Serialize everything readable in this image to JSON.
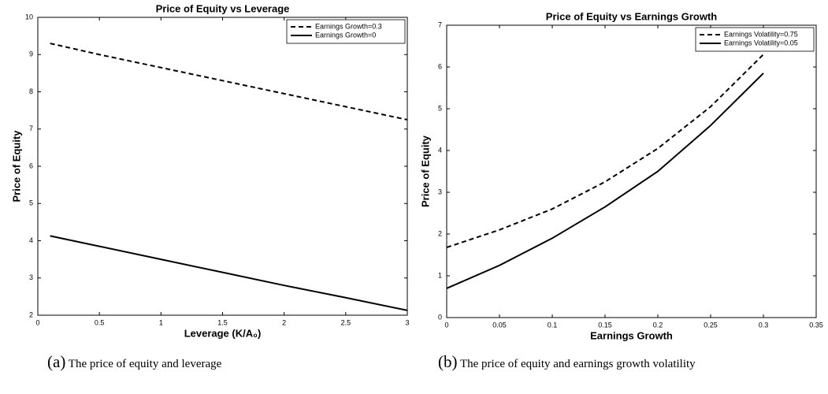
{
  "chart_data": [
    {
      "type": "line",
      "title": "Price of Equity vs Leverage",
      "xlabel": "Leverage (K/A₀)",
      "ylabel": "Price of Equity",
      "caption_label": "(a)",
      "caption": "The price of equity and leverage",
      "x": [
        0.1,
        0.5,
        1,
        1.5,
        2,
        2.5,
        3
      ],
      "series": [
        {
          "name": "Earnings Growth=0.3",
          "color": "#000000",
          "style": "dashed",
          "values": [
            9.3,
            9.0,
            8.65,
            8.3,
            7.95,
            7.6,
            7.25
          ]
        },
        {
          "name": "Earnings Growth=0",
          "color": "#000000",
          "style": "solid",
          "values": [
            4.13,
            3.85,
            3.5,
            3.15,
            2.8,
            2.47,
            2.13
          ]
        }
      ],
      "xlim": [
        0,
        3
      ],
      "xticks": [
        0,
        0.5,
        1,
        1.5,
        2,
        2.5,
        3
      ],
      "ylim": [
        2,
        10
      ],
      "yticks": [
        2,
        3,
        4,
        5,
        6,
        7,
        8,
        9,
        10
      ],
      "legend": "upper right"
    },
    {
      "type": "line",
      "title": "Price of Equity vs Earnings Growth",
      "xlabel": "Earnings Growth",
      "ylabel": "Price of Equity",
      "caption_label": "(b)",
      "caption": "The price of equity and earnings growth volatility",
      "x": [
        0,
        0.05,
        0.1,
        0.15,
        0.2,
        0.25,
        0.3
      ],
      "series": [
        {
          "name": "Earnings Volatility=0.75",
          "color": "#000000",
          "style": "dashed",
          "values": [
            1.68,
            2.1,
            2.6,
            3.25,
            4.05,
            5.05,
            6.3
          ]
        },
        {
          "name": "Earnings Volatility=0.05",
          "color": "#000000",
          "style": "solid",
          "values": [
            0.7,
            1.25,
            1.9,
            2.65,
            3.5,
            4.6,
            5.85
          ]
        }
      ],
      "xlim": [
        0,
        0.35
      ],
      "xticks": [
        0,
        0.05,
        0.1,
        0.15,
        0.2,
        0.25,
        0.3,
        0.35
      ],
      "ylim": [
        0,
        7
      ],
      "yticks": [
        0,
        1,
        2,
        3,
        4,
        5,
        6,
        7
      ],
      "legend": "upper right"
    }
  ]
}
